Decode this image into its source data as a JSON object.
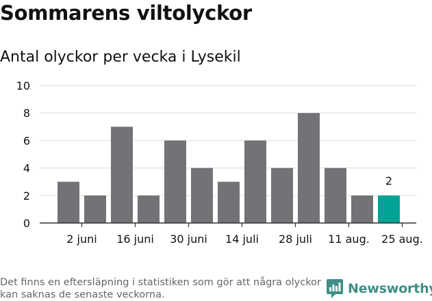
{
  "title": "Sommarens viltolyckor",
  "subtitle": "Antal olyckor per vecka i Lysekil",
  "footnote": "Det finns en eftersläpning i statistiken som gör att några olyckor kan saknas de senaste veckorna.",
  "brand": {
    "name": "Newsworthy",
    "icon": "newsworthy-logo-icon",
    "color": "#3f8f86"
  },
  "colors": {
    "bar": "#737276",
    "highlight": "#00a396",
    "grid": "#dddddd",
    "axis": "#333333"
  },
  "chart_data": {
    "type": "bar",
    "title": "Sommarens viltolyckor",
    "subtitle": "Antal olyckor per vecka i Lysekil",
    "xlabel": "",
    "ylabel": "",
    "ylim": [
      0,
      10
    ],
    "yticks": [
      0,
      2,
      4,
      6,
      8,
      10
    ],
    "grid": true,
    "values": [
      3,
      2,
      7,
      2,
      6,
      4,
      3,
      6,
      4,
      8,
      4,
      2,
      2
    ],
    "highlight_index": 12,
    "data_labels": [
      {
        "index": 12,
        "text": "2"
      }
    ],
    "xtick_labels": [
      {
        "index": 0.5,
        "text": "2 juni"
      },
      {
        "index": 2.5,
        "text": "16 juni"
      },
      {
        "index": 4.5,
        "text": "30 juni"
      },
      {
        "index": 6.5,
        "text": "14 juli"
      },
      {
        "index": 8.5,
        "text": "28 juli"
      },
      {
        "index": 10.5,
        "text": "11 aug."
      },
      {
        "index": 12.5,
        "text": "25 aug."
      }
    ]
  }
}
